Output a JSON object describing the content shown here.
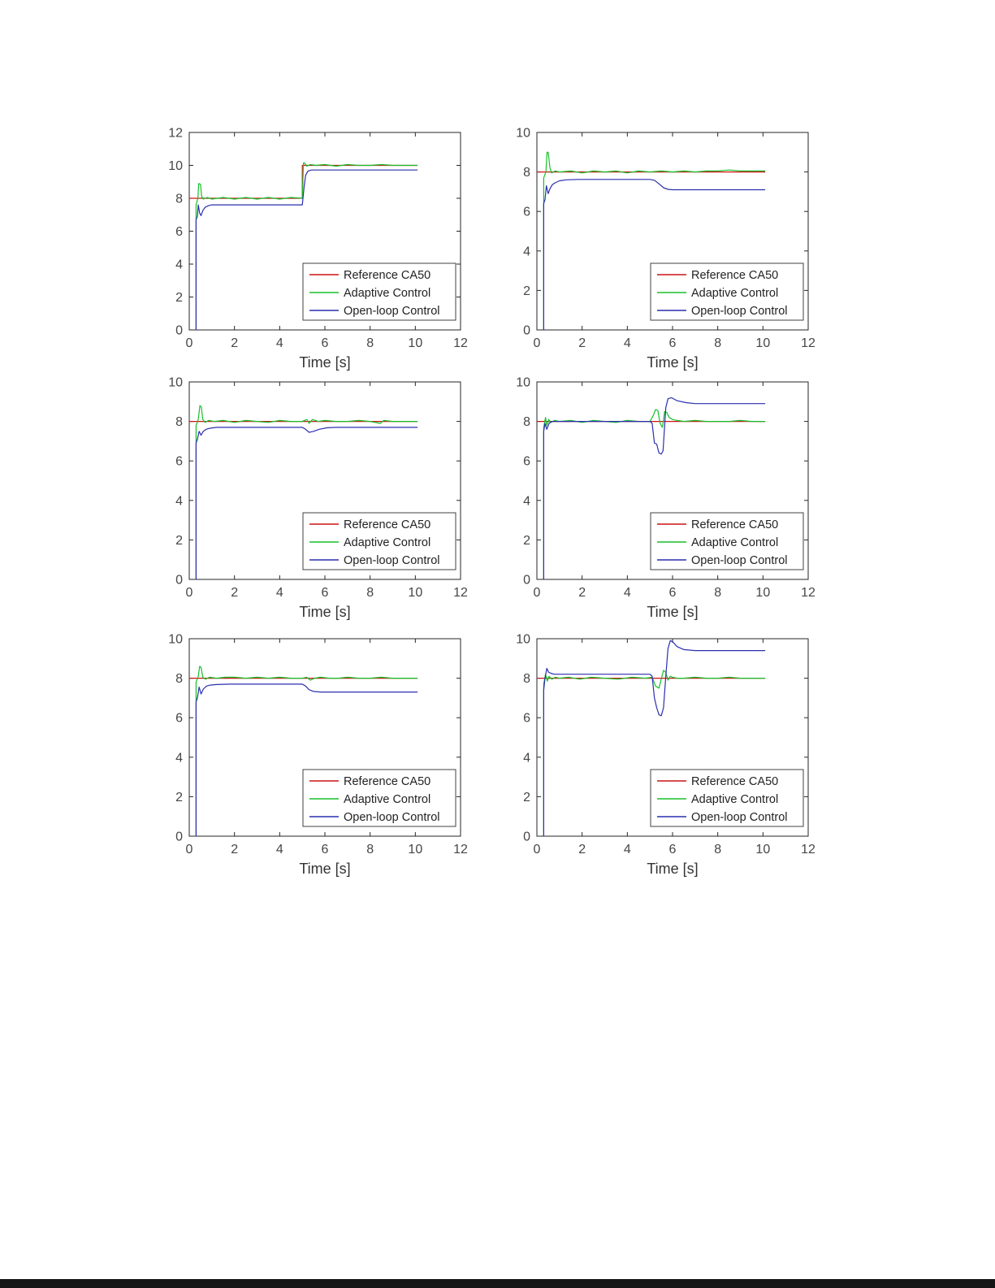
{
  "page": {
    "background": "#ffffff",
    "bottom_bar_color": "#161616"
  },
  "colors": {
    "reference": "#cc1414",
    "adaptive": "#18bf2a",
    "open_loop": "#2a2fae",
    "axis": "#262626",
    "tick_label": "#464646",
    "legend_border": "#404040",
    "legend_text": "#222222"
  },
  "chart_data": [
    {
      "type": "line",
      "title": "",
      "xlabel": "Time [s]",
      "ylabel": "",
      "xlim": [
        0,
        12
      ],
      "ylim": [
        0,
        12
      ],
      "xticks": [
        0,
        2,
        4,
        6,
        8,
        10,
        12
      ],
      "yticks": [
        0,
        2,
        4,
        6,
        8,
        10,
        12
      ],
      "grid": false,
      "legend": {
        "position": "lower-right-inside",
        "entries": [
          "Reference CA50",
          "Adaptive Control",
          "Open-loop Control"
        ]
      },
      "series": [
        {
          "name": "Reference CA50",
          "color": "#cc1414",
          "x": [
            0,
            5,
            5,
            10.1
          ],
          "y": [
            8,
            8,
            10,
            10
          ]
        },
        {
          "name": "Adaptive Control",
          "color": "#18bf2a",
          "x": [
            0.3,
            0.3,
            0.38,
            0.42,
            0.5,
            0.55,
            0.62,
            0.8,
            1.0,
            1.5,
            2.0,
            2.5,
            3.0,
            3.5,
            4.0,
            4.5,
            5.0,
            5.05,
            5.1,
            5.2,
            5.35,
            5.6,
            6.0,
            6.5,
            7.0,
            7.5,
            8.0,
            8.5,
            9.0,
            9.5,
            10.1
          ],
          "y": [
            0,
            7.6,
            8.0,
            8.9,
            8.85,
            8.1,
            7.95,
            8.05,
            7.95,
            8.05,
            7.95,
            8.05,
            7.95,
            8.05,
            7.95,
            8.05,
            8.0,
            10.15,
            10.15,
            9.95,
            10.05,
            10.0,
            10.05,
            9.95,
            10.05,
            10.0,
            10.0,
            10.05,
            10.0,
            10.0,
            10.0
          ]
        },
        {
          "name": "Open-loop Control",
          "color": "#2a2fae",
          "x": [
            0.3,
            0.3,
            0.36,
            0.4,
            0.46,
            0.52,
            0.6,
            0.7,
            0.85,
            1.0,
            1.5,
            2.0,
            3.0,
            4.0,
            5.0,
            5.08,
            5.15,
            5.25,
            5.4,
            6.0,
            7.0,
            8.0,
            9.0,
            10.1
          ],
          "y": [
            0,
            6.7,
            6.9,
            7.6,
            7.1,
            6.95,
            7.25,
            7.45,
            7.55,
            7.6,
            7.6,
            7.6,
            7.6,
            7.6,
            7.6,
            8.7,
            9.4,
            9.65,
            9.72,
            9.72,
            9.72,
            9.72,
            9.72,
            9.72
          ]
        }
      ]
    },
    {
      "type": "line",
      "title": "",
      "xlabel": "Time [s]",
      "ylabel": "",
      "xlim": [
        0,
        12
      ],
      "ylim": [
        0,
        10
      ],
      "xticks": [
        0,
        2,
        4,
        6,
        8,
        10,
        12
      ],
      "yticks": [
        0,
        2,
        4,
        6,
        8,
        10
      ],
      "grid": false,
      "legend": {
        "position": "lower-right-inside",
        "entries": [
          "Reference CA50",
          "Adaptive Control",
          "Open-loop Control"
        ]
      },
      "series": [
        {
          "name": "Reference CA50",
          "color": "#cc1414",
          "x": [
            0,
            10.1
          ],
          "y": [
            8,
            8
          ]
        },
        {
          "name": "Adaptive Control",
          "color": "#18bf2a",
          "x": [
            0.3,
            0.3,
            0.4,
            0.45,
            0.5,
            0.58,
            0.65,
            0.8,
            1.0,
            1.5,
            2.0,
            2.5,
            3.0,
            3.5,
            4.0,
            4.5,
            5.0,
            5.5,
            6.0,
            6.5,
            7.0,
            7.5,
            8.0,
            8.5,
            9.0,
            9.5,
            10.1
          ],
          "y": [
            0,
            7.7,
            8.0,
            9.0,
            9.0,
            8.2,
            7.95,
            8.05,
            8.0,
            8.05,
            7.95,
            8.05,
            8.0,
            8.05,
            7.95,
            8.05,
            8.0,
            8.05,
            8.0,
            8.05,
            8.0,
            8.05,
            8.05,
            8.1,
            8.05,
            8.05,
            8.05
          ]
        },
        {
          "name": "Open-loop Control",
          "color": "#2a2fae",
          "x": [
            0.3,
            0.3,
            0.36,
            0.42,
            0.5,
            0.58,
            0.68,
            0.8,
            1.0,
            1.3,
            1.8,
            2.5,
            3.5,
            4.5,
            5.0,
            5.2,
            5.4,
            5.6,
            5.8,
            6.0,
            6.5,
            7.0,
            8.0,
            9.0,
            10.1
          ],
          "y": [
            0,
            6.4,
            6.6,
            7.3,
            6.9,
            7.15,
            7.35,
            7.45,
            7.55,
            7.6,
            7.62,
            7.62,
            7.62,
            7.62,
            7.62,
            7.58,
            7.4,
            7.2,
            7.12,
            7.1,
            7.1,
            7.1,
            7.1,
            7.1,
            7.1
          ]
        }
      ]
    },
    {
      "type": "line",
      "title": "",
      "xlabel": "Time [s]",
      "ylabel": "",
      "xlim": [
        0,
        12
      ],
      "ylim": [
        0,
        10
      ],
      "xticks": [
        0,
        2,
        4,
        6,
        8,
        10,
        12
      ],
      "yticks": [
        0,
        2,
        4,
        6,
        8,
        10
      ],
      "grid": false,
      "legend": {
        "position": "lower-right-inside",
        "entries": [
          "Reference CA50",
          "Adaptive Control",
          "Open-loop Control"
        ]
      },
      "series": [
        {
          "name": "Reference CA50",
          "color": "#cc1414",
          "x": [
            0,
            10.1
          ],
          "y": [
            8,
            8
          ]
        },
        {
          "name": "Adaptive Control",
          "color": "#18bf2a",
          "x": [
            0.3,
            0.3,
            0.4,
            0.47,
            0.53,
            0.6,
            0.7,
            0.85,
            1.1,
            1.5,
            2.0,
            2.5,
            3.0,
            3.5,
            4.0,
            4.5,
            5.0,
            5.2,
            5.3,
            5.45,
            5.7,
            6.0,
            6.5,
            7.0,
            7.5,
            8.0,
            8.45,
            8.6,
            9.0,
            9.5,
            10.1
          ],
          "y": [
            0,
            7.8,
            8.1,
            8.8,
            8.75,
            8.1,
            7.95,
            8.05,
            8.0,
            8.05,
            7.95,
            8.05,
            8.0,
            7.95,
            8.05,
            8.0,
            8.0,
            8.1,
            7.9,
            8.1,
            8.0,
            8.05,
            8.0,
            8.0,
            8.05,
            8.0,
            7.9,
            8.05,
            8.0,
            8.0,
            8.0
          ]
        },
        {
          "name": "Open-loop Control",
          "color": "#2a2fae",
          "x": [
            0.3,
            0.3,
            0.36,
            0.44,
            0.52,
            0.62,
            0.75,
            0.9,
            1.2,
            1.8,
            2.5,
            3.5,
            4.5,
            5.0,
            5.15,
            5.3,
            5.5,
            5.75,
            6.1,
            6.5,
            7.0,
            8.0,
            9.0,
            10.1
          ],
          "y": [
            0,
            6.9,
            7.1,
            7.5,
            7.3,
            7.5,
            7.6,
            7.65,
            7.7,
            7.7,
            7.7,
            7.7,
            7.7,
            7.7,
            7.6,
            7.45,
            7.5,
            7.6,
            7.68,
            7.7,
            7.7,
            7.7,
            7.7,
            7.7
          ]
        }
      ]
    },
    {
      "type": "line",
      "title": "",
      "xlabel": "Time [s]",
      "ylabel": "",
      "xlim": [
        0,
        12
      ],
      "ylim": [
        0,
        10
      ],
      "xticks": [
        0,
        2,
        4,
        6,
        8,
        10,
        12
      ],
      "yticks": [
        0,
        2,
        4,
        6,
        8,
        10
      ],
      "grid": false,
      "legend": {
        "position": "lower-right-inside",
        "entries": [
          "Reference CA50",
          "Adaptive Control",
          "Open-loop Control"
        ]
      },
      "series": [
        {
          "name": "Reference CA50",
          "color": "#cc1414",
          "x": [
            0,
            10.1
          ],
          "y": [
            8,
            8
          ]
        },
        {
          "name": "Adaptive Control",
          "color": "#18bf2a",
          "x": [
            0.3,
            0.3,
            0.38,
            0.44,
            0.52,
            0.62,
            0.78,
            1.0,
            1.5,
            2.0,
            2.5,
            3.0,
            3.5,
            4.0,
            4.5,
            5.0,
            5.15,
            5.25,
            5.35,
            5.45,
            5.55,
            5.65,
            5.75,
            5.85,
            6.0,
            6.2,
            6.5,
            7.0,
            7.5,
            8.0,
            8.5,
            9.0,
            9.5,
            10.1
          ],
          "y": [
            0,
            7.7,
            8.2,
            7.8,
            8.1,
            7.95,
            8.05,
            8.0,
            8.05,
            7.95,
            8.05,
            8.0,
            7.95,
            8.05,
            8.0,
            8.0,
            8.3,
            8.6,
            8.55,
            7.9,
            7.7,
            8.5,
            8.45,
            8.2,
            8.1,
            8.05,
            8.0,
            8.05,
            8.0,
            8.0,
            8.0,
            8.05,
            8.0,
            8.0
          ]
        },
        {
          "name": "Open-loop Control",
          "color": "#2a2fae",
          "x": [
            0.3,
            0.3,
            0.36,
            0.44,
            0.54,
            0.66,
            0.8,
            1.0,
            1.4,
            2.0,
            2.8,
            3.6,
            4.4,
            5.0,
            5.1,
            5.2,
            5.3,
            5.4,
            5.5,
            5.58,
            5.64,
            5.7,
            5.8,
            5.95,
            6.2,
            6.6,
            7.0,
            8.0,
            9.0,
            10.1
          ],
          "y": [
            0,
            7.5,
            7.9,
            7.6,
            7.9,
            8.0,
            8.0,
            8.0,
            8.0,
            8.0,
            8.0,
            8.0,
            8.0,
            8.0,
            7.9,
            6.9,
            6.85,
            6.4,
            6.35,
            6.5,
            7.6,
            8.7,
            9.15,
            9.2,
            9.05,
            8.95,
            8.9,
            8.9,
            8.9,
            8.9
          ]
        }
      ]
    },
    {
      "type": "line",
      "title": "",
      "xlabel": "Time [s]",
      "ylabel": "",
      "xlim": [
        0,
        12
      ],
      "ylim": [
        0,
        10
      ],
      "xticks": [
        0,
        2,
        4,
        6,
        8,
        10,
        12
      ],
      "yticks": [
        0,
        2,
        4,
        6,
        8,
        10
      ],
      "grid": false,
      "legend": {
        "position": "lower-right-inside",
        "entries": [
          "Reference CA50",
          "Adaptive Control",
          "Open-loop Control"
        ]
      },
      "series": [
        {
          "name": "Reference CA50",
          "color": "#cc1414",
          "x": [
            0,
            10.1
          ],
          "y": [
            8,
            8
          ]
        },
        {
          "name": "Adaptive Control",
          "color": "#18bf2a",
          "x": [
            0.3,
            0.3,
            0.4,
            0.46,
            0.52,
            0.6,
            0.72,
            0.9,
            1.2,
            1.6,
            2.0,
            2.5,
            3.0,
            3.5,
            4.0,
            4.5,
            5.0,
            5.2,
            5.35,
            5.55,
            5.8,
            6.2,
            6.6,
            7.0,
            7.5,
            8.0,
            8.5,
            9.0,
            9.5,
            10.1
          ],
          "y": [
            0,
            7.8,
            8.1,
            8.6,
            8.55,
            8.05,
            7.95,
            8.05,
            8.0,
            8.05,
            8.05,
            8.0,
            8.05,
            8.0,
            8.05,
            8.0,
            8.0,
            8.05,
            7.9,
            8.0,
            8.05,
            8.0,
            8.0,
            8.05,
            8.0,
            8.0,
            8.05,
            8.0,
            8.0,
            8.0
          ]
        },
        {
          "name": "Open-loop Control",
          "color": "#2a2fae",
          "x": [
            0.3,
            0.3,
            0.36,
            0.44,
            0.52,
            0.62,
            0.76,
            0.92,
            1.2,
            1.8,
            2.5,
            3.5,
            4.5,
            5.0,
            5.15,
            5.3,
            5.5,
            5.8,
            6.2,
            7.0,
            8.0,
            9.0,
            10.1
          ],
          "y": [
            0,
            6.8,
            7.0,
            7.55,
            7.2,
            7.45,
            7.6,
            7.65,
            7.68,
            7.7,
            7.7,
            7.7,
            7.7,
            7.7,
            7.6,
            7.42,
            7.33,
            7.3,
            7.3,
            7.3,
            7.3,
            7.3,
            7.3
          ]
        }
      ]
    },
    {
      "type": "line",
      "title": "",
      "xlabel": "Time [s]",
      "ylabel": "",
      "xlim": [
        0,
        12
      ],
      "ylim": [
        0,
        10
      ],
      "xticks": [
        0,
        2,
        4,
        6,
        8,
        10,
        12
      ],
      "yticks": [
        0,
        2,
        4,
        6,
        8,
        10
      ],
      "grid": false,
      "legend": {
        "position": "lower-right-inside",
        "entries": [
          "Reference CA50",
          "Adaptive Control",
          "Open-loop Control"
        ]
      },
      "series": [
        {
          "name": "Reference CA50",
          "color": "#cc1414",
          "x": [
            0,
            10.1
          ],
          "y": [
            8,
            8
          ]
        },
        {
          "name": "Adaptive Control",
          "color": "#18bf2a",
          "x": [
            0.3,
            0.3,
            0.38,
            0.46,
            0.54,
            0.66,
            0.82,
            1.0,
            1.4,
            1.9,
            2.4,
            3.0,
            3.6,
            4.2,
            4.8,
            5.1,
            5.25,
            5.4,
            5.5,
            5.6,
            5.7,
            5.8,
            5.9,
            6.0,
            6.2,
            6.5,
            7.0,
            7.5,
            8.0,
            8.5,
            9.0,
            9.5,
            10.1
          ],
          "y": [
            0,
            7.7,
            8.2,
            7.85,
            8.1,
            7.95,
            8.05,
            8.0,
            8.05,
            7.95,
            8.05,
            8.0,
            7.95,
            8.05,
            8.0,
            8.05,
            7.6,
            7.5,
            7.95,
            8.4,
            8.3,
            7.9,
            8.1,
            8.05,
            8.0,
            8.0,
            8.05,
            8.0,
            8.0,
            8.05,
            8.0,
            8.0,
            8.0
          ]
        },
        {
          "name": "Open-loop Control",
          "color": "#2a2fae",
          "x": [
            0.3,
            0.3,
            0.36,
            0.44,
            0.52,
            0.62,
            0.76,
            0.95,
            1.3,
            1.9,
            2.6,
            3.4,
            4.2,
            5.0,
            5.1,
            5.2,
            5.3,
            5.4,
            5.5,
            5.6,
            5.7,
            5.8,
            5.9,
            6.0,
            6.2,
            6.5,
            7.0,
            8.0,
            9.0,
            10.1
          ],
          "y": [
            0,
            7.4,
            8.0,
            8.5,
            8.3,
            8.25,
            8.2,
            8.2,
            8.2,
            8.2,
            8.2,
            8.2,
            8.2,
            8.2,
            8.1,
            7.0,
            6.5,
            6.15,
            6.1,
            6.5,
            8.1,
            9.5,
            9.9,
            9.85,
            9.6,
            9.45,
            9.4,
            9.4,
            9.4,
            9.4
          ]
        }
      ]
    }
  ]
}
